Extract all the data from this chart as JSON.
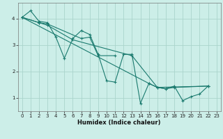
{
  "xlabel": "Humidex (Indice chaleur)",
  "bg_color": "#cceee8",
  "grid_color": "#aad4cc",
  "line_color": "#1a7a6e",
  "xlim": [
    -0.5,
    23.5
  ],
  "ylim": [
    0.5,
    4.6
  ],
  "yticks": [
    1,
    2,
    3,
    4
  ],
  "xticks": [
    0,
    1,
    2,
    3,
    4,
    5,
    6,
    7,
    8,
    9,
    10,
    11,
    12,
    13,
    14,
    15,
    16,
    17,
    18,
    19,
    20,
    21,
    22,
    23
  ],
  "line1_x": [
    0,
    1,
    2,
    3,
    4,
    5,
    6,
    7,
    8,
    9,
    10,
    11,
    12,
    13,
    14,
    15,
    16,
    17,
    18,
    19,
    20,
    21,
    22
  ],
  "line1_y": [
    4.05,
    4.3,
    3.9,
    3.85,
    3.3,
    2.5,
    3.25,
    3.55,
    3.4,
    2.65,
    1.65,
    1.6,
    2.65,
    2.65,
    0.8,
    1.55,
    1.4,
    1.35,
    1.45,
    0.9,
    1.05,
    1.15,
    1.45
  ],
  "line2_x": [
    0,
    2,
    3,
    7,
    8,
    9,
    11
  ],
  "line2_y": [
    4.05,
    3.85,
    3.8,
    3.25,
    3.3,
    2.6,
    2.6
  ],
  "line3_x": [
    0,
    15,
    16,
    17,
    18,
    22
  ],
  "line3_y": [
    4.05,
    1.55,
    1.4,
    1.35,
    1.4,
    1.45
  ],
  "line4_x": [
    0,
    2,
    3,
    6,
    13,
    16,
    22
  ],
  "line4_y": [
    4.05,
    3.85,
    3.75,
    3.2,
    2.6,
    1.4,
    1.45
  ]
}
